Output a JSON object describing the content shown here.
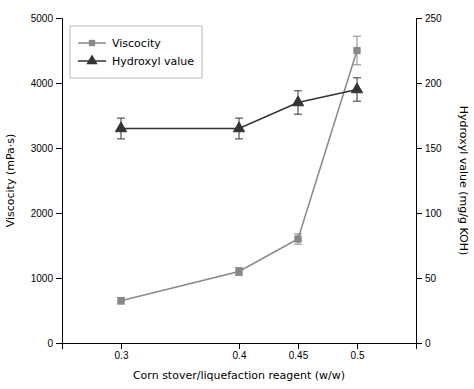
{
  "chart_data": {
    "type": "line",
    "xlabel": "Corn stover/liquefaction reagent (w/w)",
    "ylabel": "Viscocity (mPa·s)",
    "y2label": "Hydroxyl value (mg/g KOH)",
    "x": [
      0.3,
      0.4,
      0.45,
      0.5
    ],
    "xlim": [
      0.25,
      0.55
    ],
    "xticks": [
      0.3,
      0.4,
      0.45,
      0.5
    ],
    "ylim": [
      0,
      5000
    ],
    "yticks": [
      0,
      1000,
      2000,
      3000,
      4000,
      5000
    ],
    "y2lim": [
      0,
      250
    ],
    "y2ticks": [
      0,
      50,
      100,
      150,
      200,
      250
    ],
    "legend": "upper left",
    "series": [
      {
        "name": "Viscocity",
        "color": "#888888",
        "marker": "square",
        "line_style": "solid",
        "values": [
          650,
          1100,
          1600,
          4500
        ],
        "errors": [
          50,
          60,
          80,
          220
        ]
      },
      {
        "name": "Hydroxyl value",
        "color": "#333333",
        "marker": "triangle",
        "line_style": "solid",
        "axis": "y2",
        "values": [
          165,
          165,
          185,
          195
        ],
        "errors": [
          8,
          8,
          9,
          9
        ]
      }
    ]
  }
}
